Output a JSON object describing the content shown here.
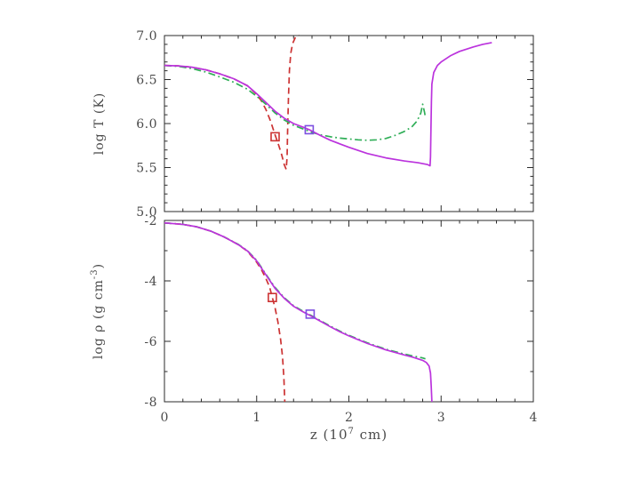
{
  "figure": {
    "background": "#ffffff",
    "axis_color": "#2b2b2b",
    "text_color": "#4a4a4a"
  },
  "labels": {
    "ylabel_top": "log T (K)",
    "ylabel_bottom_pre": "log ρ (g cm",
    "ylabel_bottom_sup": "-3",
    "ylabel_bottom_post": ")",
    "xlabel_pre": "z (10",
    "xlabel_sup": "7",
    "xlabel_post": " cm)"
  },
  "chart_data": [
    {
      "id": "temperature-panel",
      "type": "line",
      "title": "",
      "xlabel": "z (10^7 cm)",
      "ylabel": "log T (K)",
      "xlim": [
        0,
        4
      ],
      "ylim": [
        5.0,
        7.0
      ],
      "xticks": [
        0,
        1,
        2,
        3,
        4
      ],
      "xtick_labels": [
        "0",
        "1",
        "2",
        "3",
        "4"
      ],
      "show_xtick_labels": false,
      "yticks": [
        5.0,
        5.5,
        6.0,
        6.5,
        7.0
      ],
      "ytick_labels": [
        "5.0",
        "5.5",
        "6.0",
        "6.5",
        "7.0"
      ],
      "x_minor_step": 0.2,
      "y_minor_step": 0.1,
      "grid": false,
      "legend": "none",
      "series": [
        {
          "name": "red-dashed",
          "color": "#cc3333",
          "style": "dashed",
          "points": [
            [
              0,
              6.66
            ],
            [
              0.15,
              6.655
            ],
            [
              0.3,
              6.64
            ],
            [
              0.45,
              6.61
            ],
            [
              0.6,
              6.565
            ],
            [
              0.75,
              6.51
            ],
            [
              0.9,
              6.43
            ],
            [
              1.0,
              6.33
            ],
            [
              1.05,
              6.26
            ],
            [
              1.1,
              6.16
            ],
            [
              1.15,
              6.03
            ],
            [
              1.2,
              5.87
            ],
            [
              1.24,
              5.75
            ],
            [
              1.27,
              5.65
            ],
            [
              1.3,
              5.53
            ],
            [
              1.32,
              5.48
            ],
            [
              1.33,
              5.62
            ],
            [
              1.335,
              5.9
            ],
            [
              1.345,
              6.3
            ],
            [
              1.355,
              6.6
            ],
            [
              1.37,
              6.8
            ],
            [
              1.39,
              6.91
            ],
            [
              1.42,
              6.98
            ],
            [
              1.46,
              7.02
            ],
            [
              1.52,
              7.04
            ]
          ]
        },
        {
          "name": "green-dash-dot",
          "color": "#2fae57",
          "style": "dashdot",
          "points": [
            [
              0,
              6.66
            ],
            [
              0.15,
              6.65
            ],
            [
              0.3,
              6.625
            ],
            [
              0.45,
              6.585
            ],
            [
              0.6,
              6.53
            ],
            [
              0.75,
              6.47
            ],
            [
              0.9,
              6.39
            ],
            [
              1.0,
              6.31
            ],
            [
              1.1,
              6.22
            ],
            [
              1.2,
              6.12
            ],
            [
              1.3,
              6.04
            ],
            [
              1.4,
              5.98
            ],
            [
              1.5,
              5.94
            ],
            [
              1.6,
              5.9
            ],
            [
              1.7,
              5.87
            ],
            [
              1.8,
              5.85
            ],
            [
              1.9,
              5.835
            ],
            [
              2.0,
              5.825
            ],
            [
              2.1,
              5.815
            ],
            [
              2.2,
              5.81
            ],
            [
              2.3,
              5.815
            ],
            [
              2.4,
              5.83
            ],
            [
              2.5,
              5.865
            ],
            [
              2.6,
              5.91
            ],
            [
              2.68,
              5.96
            ],
            [
              2.74,
              6.03
            ],
            [
              2.78,
              6.12
            ],
            [
              2.8,
              6.22
            ],
            [
              2.82,
              6.13
            ],
            [
              2.83,
              6.07
            ]
          ]
        },
        {
          "name": "magenta-solid",
          "color": "#bb33dd",
          "style": "solid",
          "points": [
            [
              0,
              6.66
            ],
            [
              0.15,
              6.655
            ],
            [
              0.3,
              6.64
            ],
            [
              0.45,
              6.61
            ],
            [
              0.6,
              6.565
            ],
            [
              0.75,
              6.51
            ],
            [
              0.9,
              6.43
            ],
            [
              1.0,
              6.34
            ],
            [
              1.1,
              6.24
            ],
            [
              1.2,
              6.14
            ],
            [
              1.3,
              6.06
            ],
            [
              1.4,
              6.0
            ],
            [
              1.5,
              5.96
            ],
            [
              1.57,
              5.93
            ],
            [
              1.7,
              5.86
            ],
            [
              1.8,
              5.81
            ],
            [
              1.9,
              5.77
            ],
            [
              2.0,
              5.73
            ],
            [
              2.2,
              5.66
            ],
            [
              2.4,
              5.61
            ],
            [
              2.6,
              5.575
            ],
            [
              2.75,
              5.555
            ],
            [
              2.85,
              5.535
            ],
            [
              2.88,
              5.52
            ],
            [
              2.885,
              5.62
            ],
            [
              2.89,
              5.95
            ],
            [
              2.895,
              6.25
            ],
            [
              2.9,
              6.45
            ],
            [
              2.92,
              6.58
            ],
            [
              2.96,
              6.66
            ],
            [
              3.0,
              6.7
            ],
            [
              3.1,
              6.77
            ],
            [
              3.2,
              6.82
            ],
            [
              3.35,
              6.87
            ],
            [
              3.45,
              6.9
            ],
            [
              3.55,
              6.92
            ]
          ]
        }
      ],
      "markers": [
        {
          "shape": "open-square",
          "color": "#cc3333",
          "x": 1.2,
          "y": 5.85
        },
        {
          "shape": "open-square",
          "color": "#7d4fe0",
          "x": 1.57,
          "y": 5.93
        }
      ]
    },
    {
      "id": "density-panel",
      "type": "line",
      "title": "",
      "xlabel": "z (10^7 cm)",
      "ylabel": "log rho (g cm^-3)",
      "xlim": [
        0,
        4
      ],
      "ylim": [
        -8,
        -2
      ],
      "xticks": [
        0,
        1,
        2,
        3,
        4
      ],
      "xtick_labels": [
        "0",
        "1",
        "2",
        "3",
        "4"
      ],
      "show_xtick_labels": true,
      "yticks": [
        -2,
        -4,
        -6,
        -8
      ],
      "ytick_labels": [
        "-2",
        "-4",
        "-6",
        "-8"
      ],
      "x_minor_step": 0.2,
      "y_minor_step": 1.0,
      "grid": false,
      "legend": "none",
      "series": [
        {
          "name": "red-dashed",
          "color": "#cc3333",
          "style": "dashed",
          "points": [
            [
              0,
              -2.08
            ],
            [
              0.2,
              -2.13
            ],
            [
              0.35,
              -2.21
            ],
            [
              0.5,
              -2.35
            ],
            [
              0.65,
              -2.55
            ],
            [
              0.8,
              -2.8
            ],
            [
              0.9,
              -3.02
            ],
            [
              1.0,
              -3.38
            ],
            [
              1.05,
              -3.62
            ],
            [
              1.1,
              -3.92
            ],
            [
              1.14,
              -4.2
            ],
            [
              1.17,
              -4.55
            ],
            [
              1.2,
              -4.9
            ],
            [
              1.23,
              -5.35
            ],
            [
              1.26,
              -5.95
            ],
            [
              1.28,
              -6.5
            ],
            [
              1.295,
              -7.2
            ],
            [
              1.305,
              -8.0
            ]
          ]
        },
        {
          "name": "green-dash-dot",
          "color": "#2fae57",
          "style": "dashdot",
          "points": [
            [
              0,
              -2.08
            ],
            [
              0.2,
              -2.13
            ],
            [
              0.35,
              -2.21
            ],
            [
              0.5,
              -2.35
            ],
            [
              0.65,
              -2.55
            ],
            [
              0.8,
              -2.79
            ],
            [
              0.9,
              -3.0
            ],
            [
              1.0,
              -3.32
            ],
            [
              1.1,
              -3.78
            ],
            [
              1.2,
              -4.22
            ],
            [
              1.3,
              -4.56
            ],
            [
              1.4,
              -4.82
            ],
            [
              1.5,
              -5.0
            ],
            [
              1.6,
              -5.16
            ],
            [
              1.7,
              -5.33
            ],
            [
              1.8,
              -5.5
            ],
            [
              1.9,
              -5.66
            ],
            [
              2.0,
              -5.8
            ],
            [
              2.2,
              -6.05
            ],
            [
              2.4,
              -6.26
            ],
            [
              2.6,
              -6.42
            ],
            [
              2.7,
              -6.49
            ],
            [
              2.8,
              -6.55
            ],
            [
              2.83,
              -6.58
            ]
          ]
        },
        {
          "name": "magenta-solid",
          "color": "#bb33dd",
          "style": "solid",
          "points": [
            [
              0,
              -2.08
            ],
            [
              0.2,
              -2.13
            ],
            [
              0.35,
              -2.21
            ],
            [
              0.5,
              -2.35
            ],
            [
              0.65,
              -2.55
            ],
            [
              0.8,
              -2.8
            ],
            [
              0.9,
              -3.01
            ],
            [
              1.0,
              -3.34
            ],
            [
              1.1,
              -3.8
            ],
            [
              1.2,
              -4.25
            ],
            [
              1.3,
              -4.58
            ],
            [
              1.4,
              -4.84
            ],
            [
              1.5,
              -5.02
            ],
            [
              1.6,
              -5.18
            ],
            [
              1.7,
              -5.35
            ],
            [
              1.8,
              -5.52
            ],
            [
              1.9,
              -5.68
            ],
            [
              2.0,
              -5.82
            ],
            [
              2.2,
              -6.07
            ],
            [
              2.4,
              -6.28
            ],
            [
              2.6,
              -6.45
            ],
            [
              2.7,
              -6.53
            ],
            [
              2.8,
              -6.63
            ],
            [
              2.84,
              -6.7
            ],
            [
              2.87,
              -6.82
            ],
            [
              2.885,
              -7.05
            ],
            [
              2.893,
              -7.5
            ],
            [
              2.9,
              -8.0
            ]
          ]
        }
      ],
      "markers": [
        {
          "shape": "open-square",
          "color": "#cc3333",
          "x": 1.17,
          "y": -4.55
        },
        {
          "shape": "open-square",
          "color": "#7d4fe0",
          "x": 1.58,
          "y": -5.1
        }
      ]
    }
  ]
}
